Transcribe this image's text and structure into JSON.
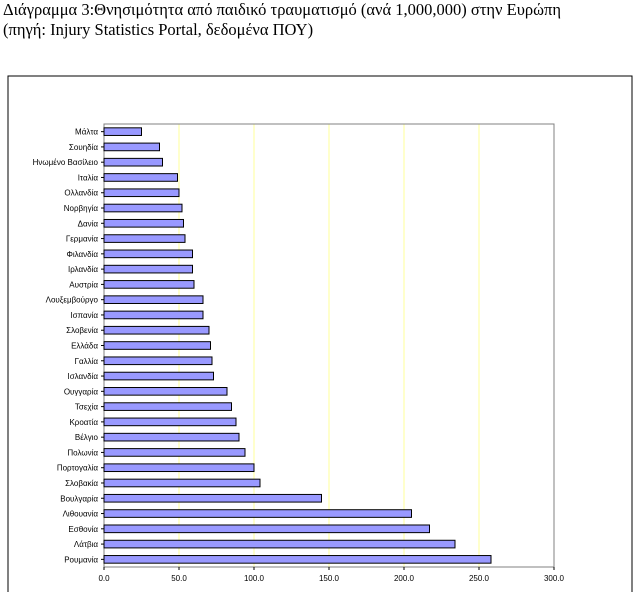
{
  "caption": {
    "line1": "Διάγραμμα 3:Θνησιμότητα από παιδικό τραυματισμό (ανά 1,000,000) στην Ευρώπη",
    "line2": "(πηγή: Injury Statistics Portal, δεδομένα ΠΟΥ)"
  },
  "chart_data": {
    "type": "bar",
    "orientation": "horizontal",
    "categories": [
      "Μάλτα",
      "Σουηδία",
      "Ηνωμένο Βασίλειο",
      "Ιταλία",
      "Ολλανδία",
      "Νορβηγία",
      "Δανία",
      "Γερμανία",
      "Φιλανδία",
      "Ιρλανδία",
      "Αυστρία",
      "Λουξεμβούργο",
      "Ισπανία",
      "Σλοβενία",
      "Ελλάδα",
      "Γαλλία",
      "Ισλανδία",
      "Ουγγαρία",
      "Τσεχία",
      "Κροατία",
      "Βέλγιο",
      "Πολωνία",
      "Πορτογαλία",
      "Σλοβακία",
      "Βουλγαρία",
      "Λιθουανία",
      "Εσθονία",
      "Λάτβια",
      "Ρουμανία"
    ],
    "values": [
      25,
      37,
      39,
      49,
      50,
      52,
      53,
      54,
      59,
      59,
      60,
      66,
      66,
      70,
      71,
      72,
      73,
      82,
      85,
      88,
      90,
      94,
      100,
      104,
      145,
      205,
      217,
      234,
      258
    ],
    "xlim": [
      0,
      300
    ],
    "xticks": [
      "0.0",
      "50.0",
      "100.0",
      "150.0",
      "200.0",
      "250.0",
      "300.0"
    ],
    "grid": true,
    "colors": {
      "bar": "#9999ff",
      "bar_edge": "#000000",
      "grid": "#ffff99"
    }
  }
}
